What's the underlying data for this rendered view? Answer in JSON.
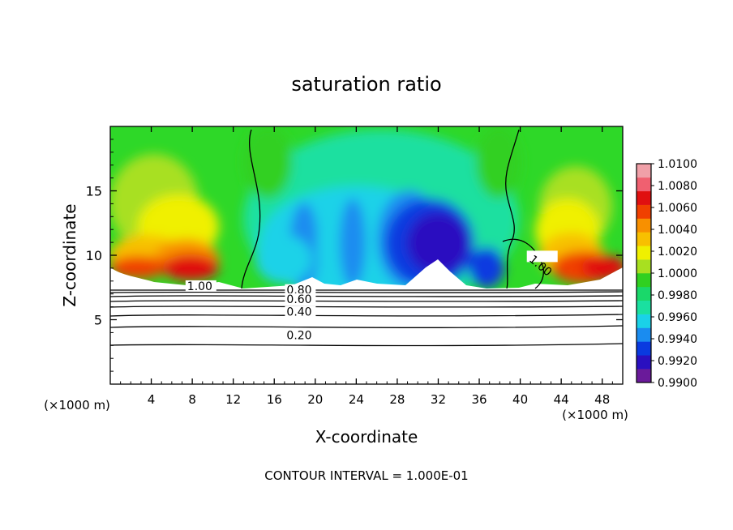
{
  "chart_data": {
    "type": "heatmap",
    "title": "saturation ratio",
    "xlabel": "X-coordinate",
    "ylabel": "Z-coordinate",
    "x_unit_left": "(×1000 m)",
    "x_unit_right": "(×1000 m)",
    "footer": "CONTOUR INTERVAL = 1.000E-01",
    "xlim": [
      0,
      50
    ],
    "ylim": [
      0,
      20
    ],
    "xticks": [
      "4",
      "8",
      "12",
      "16",
      "20",
      "24",
      "28",
      "32",
      "36",
      "40",
      "44",
      "48"
    ],
    "xtick_values": [
      4,
      8,
      12,
      16,
      20,
      24,
      28,
      32,
      36,
      40,
      44,
      48
    ],
    "yticks": [
      "5",
      "10",
      "15"
    ],
    "ytick_values": [
      5,
      10,
      15
    ],
    "colorbar": {
      "min": 0.99,
      "max": 1.01,
      "labels": [
        "1.0100",
        "1.0080",
        "1.0060",
        "1.0040",
        "1.0020",
        "1.0000",
        "0.9980",
        "0.9960",
        "0.9940",
        "0.9920",
        "0.9900"
      ],
      "colors": [
        "#6a1a9a",
        "#2a10c0",
        "#0a3ae0",
        "#1a8cf0",
        "#1ad2e8",
        "#1ae0a0",
        "#1ad86a",
        "#30d020",
        "#a8e020",
        "#f0f000",
        "#f8c000",
        "#f89000",
        "#f04000",
        "#e01010",
        "#f06070",
        "#f0a0a8"
      ]
    },
    "contour_labels": [
      {
        "text": "1.00",
        "x": 7.5,
        "y": 7.3
      },
      {
        "text": "1.00",
        "x": 40.8,
        "y": 9.6
      },
      {
        "text": "0.80",
        "x": 17.2,
        "y": 7.0
      },
      {
        "text": "0.60",
        "x": 17.2,
        "y": 6.3
      },
      {
        "text": "0.40",
        "x": 17.2,
        "y": 5.3
      },
      {
        "text": "0.20",
        "x": 17.2,
        "y": 3.5
      }
    ]
  }
}
